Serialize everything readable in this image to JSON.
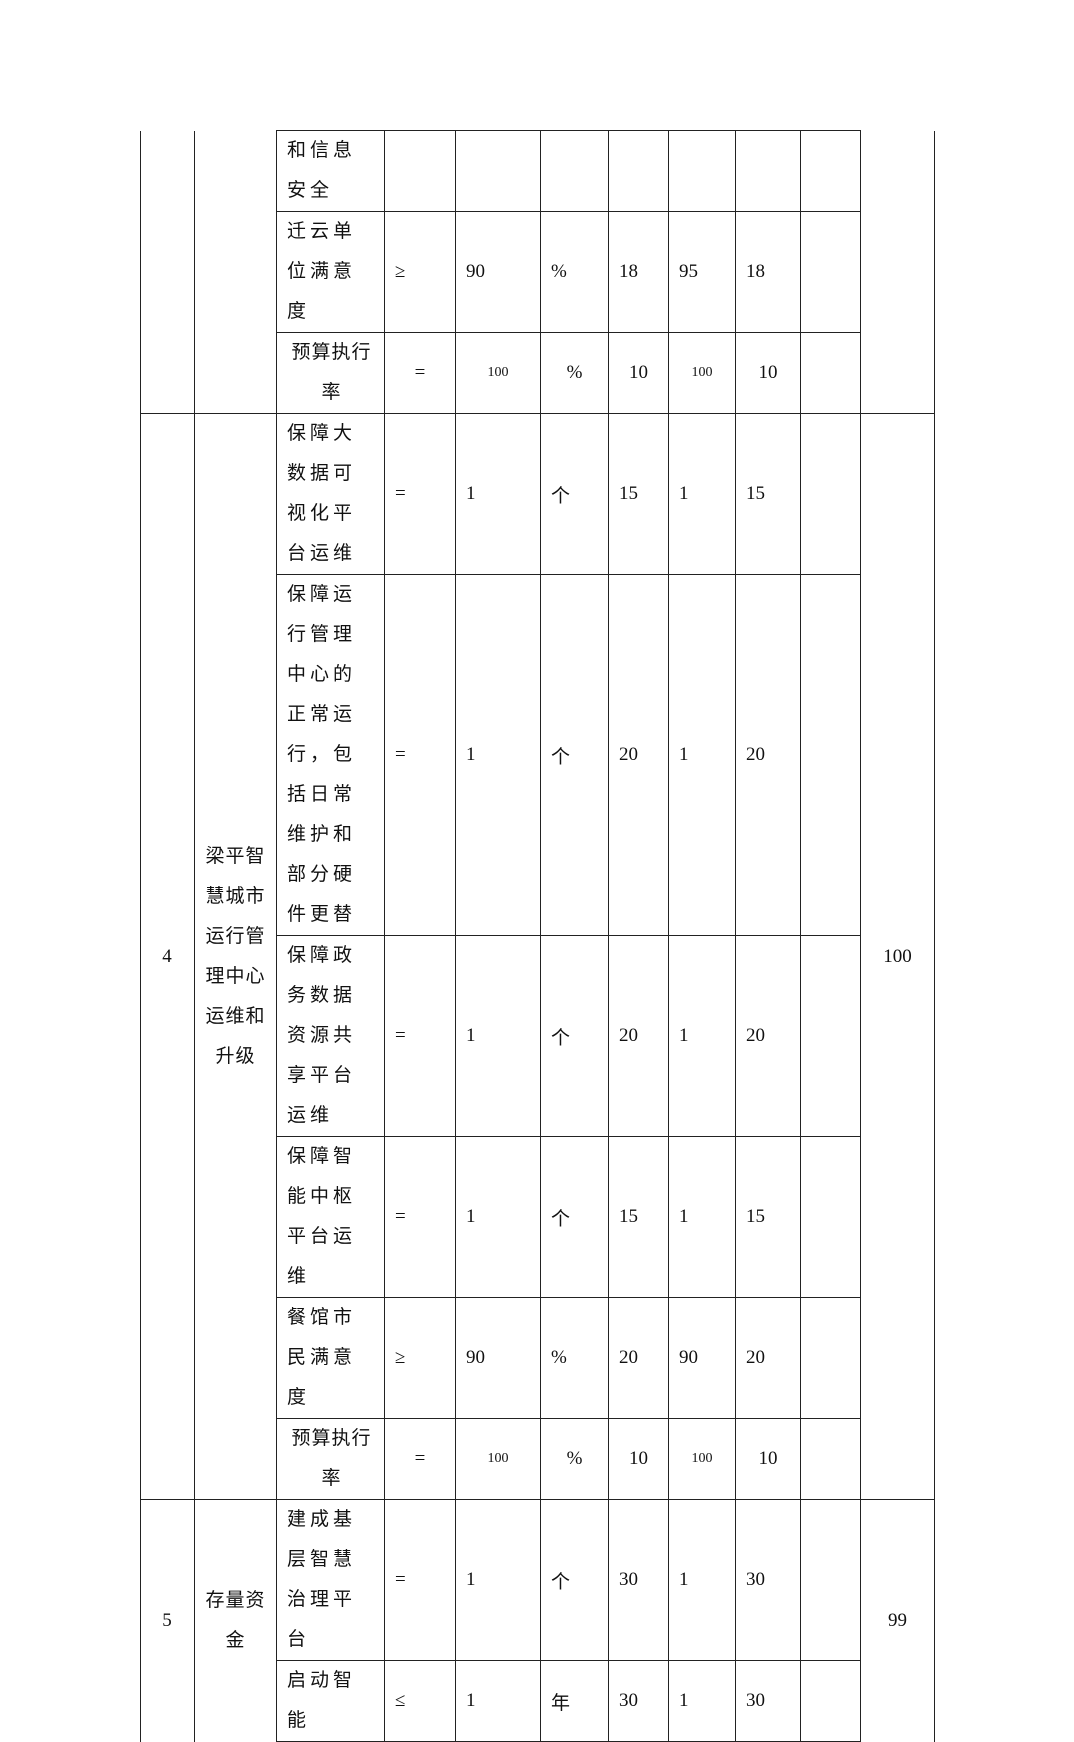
{
  "groups": [
    {
      "number": "",
      "name": "",
      "score": "",
      "rows": [
        {
          "indicator": "和信息安全",
          "op": "",
          "target": "",
          "unit": "",
          "weight": "",
          "actual": "",
          "score": "",
          "note": ""
        },
        {
          "indicator": "迁云单位满意度",
          "op": "≥",
          "target": "90",
          "unit": "%",
          "weight": "18",
          "actual": "95",
          "score": "18",
          "note": ""
        },
        {
          "indicator": "预算执行率",
          "op": "=",
          "target": "100",
          "unit": "%",
          "weight": "10",
          "actual": "100",
          "score": "10",
          "note": ""
        }
      ]
    },
    {
      "number": "4",
      "name": "梁平智慧城市运行管理中心运维和升级",
      "score": "100",
      "rows": [
        {
          "indicator": "保障大数据可视化平台运维",
          "op": "=",
          "target": "1",
          "unit": "个",
          "weight": "15",
          "actual": "1",
          "score": "15",
          "note": ""
        },
        {
          "indicator": "保障运行管理中心的正常运行，包括日常维护和部分硬件更替",
          "op": "=",
          "target": "1",
          "unit": "个",
          "weight": "20",
          "actual": "1",
          "score": "20",
          "note": ""
        },
        {
          "indicator": "保障政务数据资源共享平台运维",
          "op": "=",
          "target": "1",
          "unit": "个",
          "weight": "20",
          "actual": "1",
          "score": "20",
          "note": ""
        },
        {
          "indicator": "保障智能中枢平台运维",
          "op": "=",
          "target": "1",
          "unit": "个",
          "weight": "15",
          "actual": "1",
          "score": "15",
          "note": ""
        },
        {
          "indicator": "餐馆市民满意度",
          "op": "≥",
          "target": "90",
          "unit": "%",
          "weight": "20",
          "actual": "90",
          "score": "20",
          "note": ""
        },
        {
          "indicator": "预算执行率",
          "op": "=",
          "target": "100",
          "unit": "%",
          "weight": "10",
          "actual": "100",
          "score": "10",
          "note": ""
        }
      ]
    },
    {
      "number": "5",
      "name": "存量资金",
      "score": "99",
      "rows": [
        {
          "indicator": "建成基层智慧治理平台",
          "op": "=",
          "target": "1",
          "unit": "个",
          "weight": "30",
          "actual": "1",
          "score": "30",
          "note": ""
        },
        {
          "indicator": "启动智能",
          "op": "≤",
          "target": "1",
          "unit": "年",
          "weight": "30",
          "actual": "1",
          "score": "30",
          "note": ""
        }
      ]
    }
  ]
}
